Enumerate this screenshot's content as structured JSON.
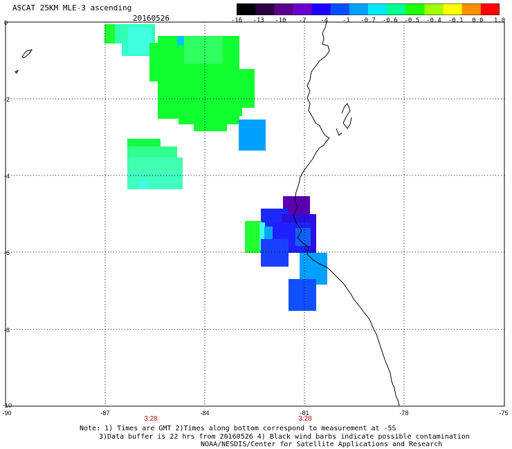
{
  "header": {
    "title": "ASCAT 25KM MLE-3 ascending",
    "date": "20160526"
  },
  "colorbar": {
    "labels": [
      "-16",
      "-13",
      "-10",
      "-7",
      "-4",
      "-1",
      "-0.7",
      "-0.6",
      "-0.5",
      "-0.4",
      "-0.1",
      "0.0",
      "1.0"
    ],
    "colors": [
      "#000000",
      "#2a0040",
      "#5a008a",
      "#6a00d0",
      "#2000ff",
      "#0050ff",
      "#00a0ff",
      "#00e8ff",
      "#00ff90",
      "#20ff00",
      "#a0ff00",
      "#ffff00",
      "#ff9000",
      "#ff0000"
    ]
  },
  "map": {
    "x_ticks": [
      "-90",
      "-87",
      "-84",
      "-81",
      "-78",
      "-75"
    ],
    "y_ticks": [
      "0",
      "-2",
      "-4",
      "-6",
      "-8",
      "-10"
    ],
    "x_range": [
      -90,
      -75
    ],
    "y_range": [
      0,
      -10
    ],
    "time_labels": [
      {
        "text": "3:28",
        "lon": -85.5
      },
      {
        "text": "3:28",
        "lon": -81
      }
    ]
  },
  "footer": {
    "note1": "Note: 1) Times are GMT 2)Times along bottom correspond to measurement at -5S",
    "note2": "3)Data buffer is 22 hrs from 20160526 4) Black wind barbs indicate possible contamination",
    "credit": "NOAA/NESDIS/Center for Satellite Applications and Research"
  }
}
